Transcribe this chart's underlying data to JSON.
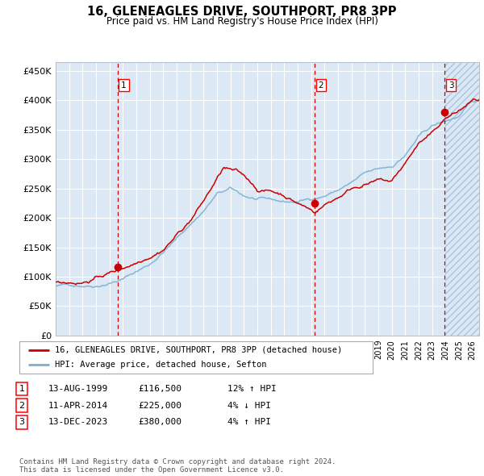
{
  "title": "16, GLENEAGLES DRIVE, SOUTHPORT, PR8 3PP",
  "subtitle": "Price paid vs. HM Land Registry's House Price Index (HPI)",
  "ylabel_ticks": [
    "£0",
    "£50K",
    "£100K",
    "£150K",
    "£200K",
    "£250K",
    "£300K",
    "£350K",
    "£400K",
    "£450K"
  ],
  "ytick_values": [
    0,
    50000,
    100000,
    150000,
    200000,
    250000,
    300000,
    350000,
    400000,
    450000
  ],
  "ylim": [
    0,
    465000
  ],
  "xlim_start": 1995.0,
  "xlim_end": 2026.5,
  "background_color": "#dce9f5",
  "hatch_color": "#aac4e0",
  "grid_color": "#ffffff",
  "sale_line_color": "#cc0000",
  "hpi_line_color": "#7ab0d4",
  "sale_marker_color": "#cc0000",
  "vline_color": "#cc0000",
  "sale1_date": 1999.617,
  "sale1_price": 116500,
  "sale2_date": 2014.278,
  "sale2_price": 225000,
  "sale3_date": 2023.95,
  "sale3_price": 380000,
  "legend_label1": "16, GLENEAGLES DRIVE, SOUTHPORT, PR8 3PP (detached house)",
  "legend_label2": "HPI: Average price, detached house, Sefton",
  "table_entries": [
    {
      "num": "1",
      "date": "13-AUG-1999",
      "price": "£116,500",
      "hpi": "12% ↑ HPI"
    },
    {
      "num": "2",
      "date": "11-APR-2014",
      "price": "£225,000",
      "hpi": "4% ↓ HPI"
    },
    {
      "num": "3",
      "date": "13-DEC-2023",
      "price": "£380,000",
      "hpi": "4% ↑ HPI"
    }
  ],
  "footnote": "Contains HM Land Registry data © Crown copyright and database right 2024.\nThis data is licensed under the Open Government Licence v3.0.",
  "hatch_start": 2024.0
}
